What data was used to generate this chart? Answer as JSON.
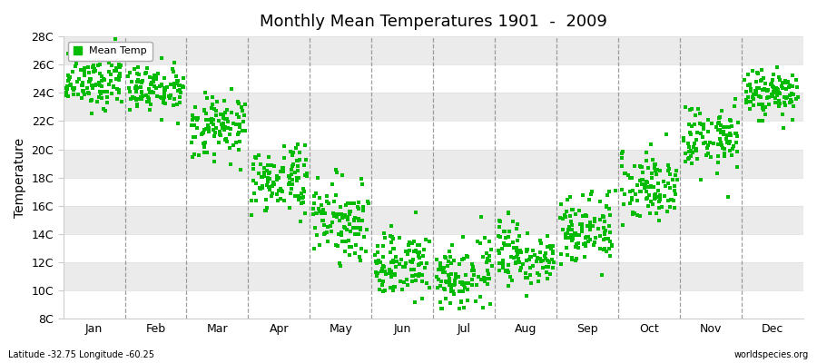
{
  "title": "Monthly Mean Temperatures 1901  -  2009",
  "ylabel": "Temperature",
  "ylim": [
    8,
    28
  ],
  "yticks": [
    8,
    10,
    12,
    14,
    16,
    18,
    20,
    22,
    24,
    26,
    28
  ],
  "ytick_labels": [
    "8C",
    "10C",
    "12C",
    "14C",
    "16C",
    "18C",
    "20C",
    "22C",
    "24C",
    "26C",
    "28C"
  ],
  "months": [
    "Jan",
    "Feb",
    "Mar",
    "Apr",
    "May",
    "Jun",
    "Jul",
    "Aug",
    "Sep",
    "Oct",
    "Nov",
    "Dec"
  ],
  "dot_color": "#00bb00",
  "legend_label": "Mean Temp",
  "bottom_left": "Latitude -32.75 Longitude -60.25",
  "bottom_right": "worldspecies.org",
  "n_years": 109,
  "monthly_means": [
    24.8,
    24.2,
    21.5,
    17.8,
    15.0,
    11.8,
    11.0,
    12.5,
    14.5,
    17.5,
    20.8,
    24.0
  ],
  "monthly_stds": [
    0.9,
    0.9,
    1.1,
    1.2,
    1.3,
    1.2,
    1.2,
    1.1,
    1.3,
    1.3,
    1.2,
    0.9
  ],
  "band_colors": [
    "#ffffff",
    "#ebebeb"
  ],
  "background_color": "#ffffff",
  "vline_color": "#888888",
  "seed": 12
}
